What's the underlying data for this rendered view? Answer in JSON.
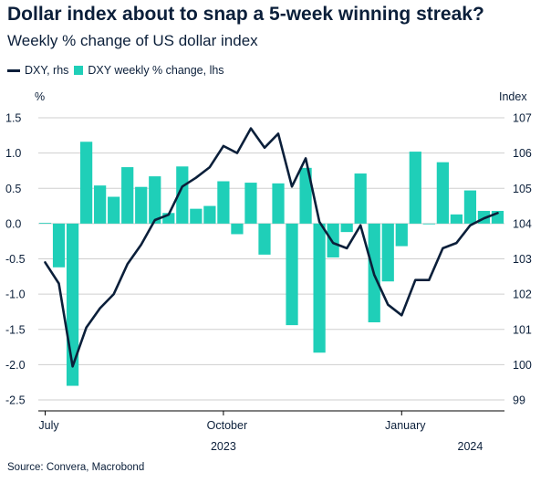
{
  "title": "Dollar index about to snap a 5-week winning streak?",
  "subtitle": "Weekly % change of US dollar index",
  "legend": {
    "line_label": "DXY, rhs",
    "bar_label": "DXY weekly % change, lhs"
  },
  "source": "Source: Convera, Macrobond",
  "colors": {
    "bar": "#1fcfb8",
    "line": "#0b1f3a",
    "grid": "#cfcfcf",
    "text": "#0b1f3a"
  },
  "chart_data": {
    "type": "bar",
    "title": "Dollar index about to snap a 5-week winning streak?",
    "subtitle": "Weekly % change of US dollar index",
    "left_axis": {
      "unit_label": "%",
      "ylim": [
        -2.5,
        1.5
      ],
      "ticks": [
        "1.5",
        "1.0",
        "0.5",
        "0.0",
        "-0.5",
        "-1.0",
        "-1.5",
        "-2.0",
        "-2.5"
      ]
    },
    "right_axis": {
      "unit_label": "Index",
      "ylim": [
        99,
        107
      ],
      "ticks": [
        "107",
        "106",
        "105",
        "104",
        "103",
        "102",
        "101",
        "100",
        "99"
      ]
    },
    "x_labels": [
      {
        "label": "July",
        "week": 0.5
      },
      {
        "label": "October",
        "week": 13.5
      },
      {
        "label": "January",
        "week": 26.5
      }
    ],
    "year_labels": [
      {
        "label": "2023",
        "week": 13.5
      },
      {
        "label": "2024",
        "week": 31.5
      }
    ],
    "weeks": 34,
    "series": [
      {
        "name": "DXY weekly % change, lhs",
        "type": "bar",
        "axis": "left",
        "values": [
          0.01,
          -0.62,
          -2.3,
          1.16,
          0.54,
          0.38,
          0.8,
          0.52,
          0.67,
          0.15,
          0.81,
          0.21,
          0.25,
          0.6,
          -0.15,
          0.58,
          -0.44,
          0.57,
          -1.44,
          0.79,
          -1.83,
          -0.48,
          -0.12,
          0.71,
          -1.4,
          -0.82,
          -0.32,
          1.02,
          -0.01,
          0.87,
          0.13,
          0.47,
          0.18,
          0.18
        ]
      },
      {
        "name": "DXY, rhs",
        "type": "line",
        "axis": "right",
        "x": [
          0.5,
          1.5,
          2.5,
          3.5,
          4.5,
          5.5,
          6.5,
          7.5,
          8.5,
          9.5,
          10.5,
          11.5,
          12.5,
          13.5,
          14.5,
          15.5,
          16.5,
          17.5,
          18.5,
          19.5,
          20.5,
          21.5,
          22.5,
          23.5,
          24.5,
          25.5,
          26.5,
          27.5,
          28.5,
          29.5,
          30.5,
          31.5,
          32.5,
          33.5
        ],
        "values": [
          102.9,
          102.3,
          99.95,
          101.05,
          101.6,
          102.0,
          102.85,
          103.4,
          104.1,
          104.25,
          105.05,
          105.3,
          105.6,
          106.2,
          106.0,
          106.7,
          106.15,
          106.55,
          105.05,
          105.85,
          104.05,
          103.45,
          103.3,
          103.95,
          102.55,
          101.7,
          101.4,
          102.4,
          102.4,
          103.3,
          103.45,
          103.95,
          104.15,
          104.3
        ]
      }
    ]
  }
}
